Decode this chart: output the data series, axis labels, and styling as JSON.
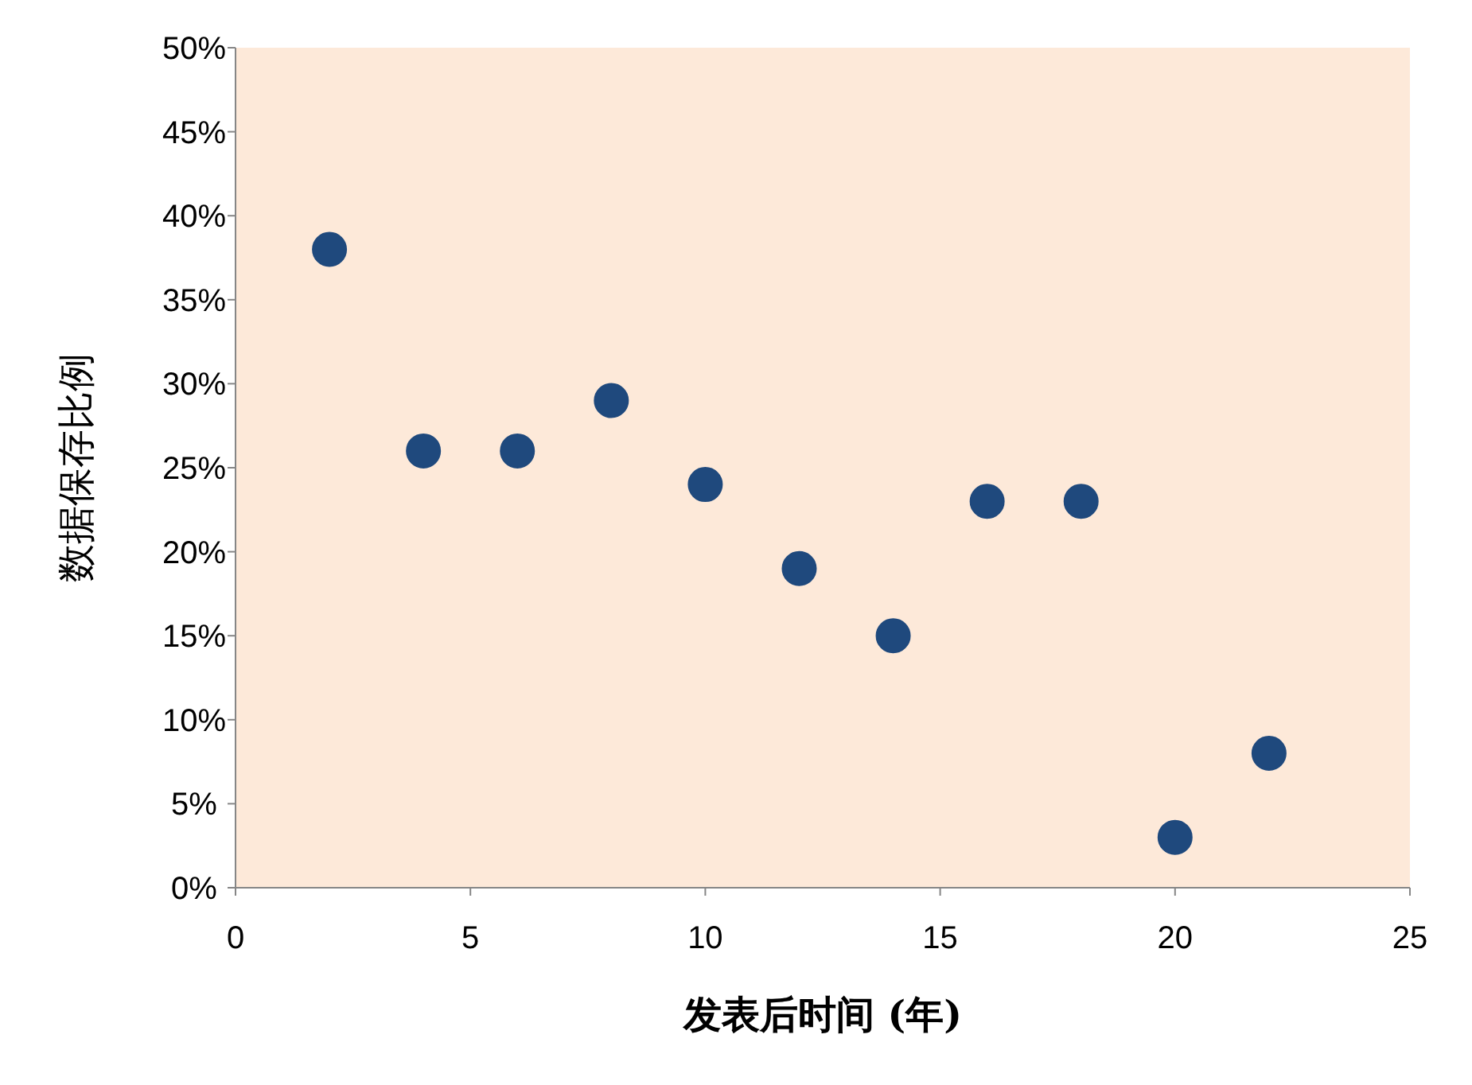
{
  "chart_data": {
    "type": "scatter",
    "xlabel": "发表后时间 (年)",
    "ylabel": "数据保存比例",
    "x": [
      2,
      4,
      6,
      8,
      10,
      12,
      14,
      16,
      18,
      20,
      22
    ],
    "series": [
      {
        "color": "#1f497d",
        "values": [
          38,
          26,
          26,
          29,
          24,
          19,
          15,
          23,
          23,
          3,
          8
        ]
      }
    ],
    "xlim": [
      0,
      25
    ],
    "xticks": [
      0,
      5,
      10,
      15,
      20,
      25
    ],
    "ylim": [
      0,
      50
    ],
    "yticks": [
      {
        "value": 0,
        "label": "0%"
      },
      {
        "value": 5,
        "label": "5%"
      },
      {
        "value": 10,
        "label": "10%"
      },
      {
        "value": 15,
        "label": "15%"
      },
      {
        "value": 20,
        "label": "20%"
      },
      {
        "value": 25,
        "label": "25%"
      },
      {
        "value": 30,
        "label": "30%"
      },
      {
        "value": 35,
        "label": "35%"
      },
      {
        "value": 40,
        "label": "40%"
      },
      {
        "value": 45,
        "label": "45%"
      },
      {
        "value": 50,
        "label": "50%"
      }
    ],
    "grid": false,
    "marker": "circle"
  }
}
